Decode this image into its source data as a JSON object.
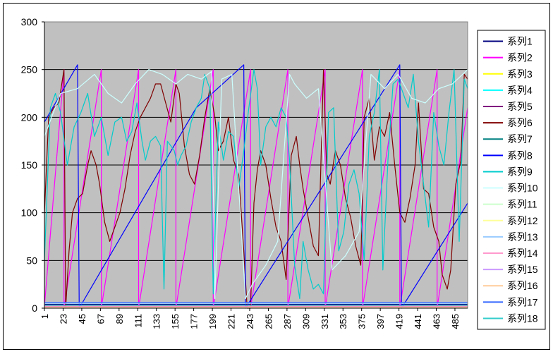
{
  "chart_data": {
    "type": "line",
    "title": "",
    "xlabel": "",
    "ylabel": "",
    "ylim": [
      0,
      300
    ],
    "yticks": [
      0,
      50,
      100,
      150,
      200,
      250,
      300
    ],
    "x_count": 500,
    "x_tick_labels": [
      "1",
      "23",
      "45",
      "67",
      "89",
      "111",
      "133",
      "155",
      "177",
      "199",
      "221",
      "243",
      "265",
      "287",
      "309",
      "331",
      "353",
      "375",
      "397",
      "419",
      "441",
      "463",
      "485"
    ],
    "grid": "horizontal",
    "legend_position": "right",
    "plot_background": "#c0c0c0",
    "series": [
      {
        "name": "系列1",
        "color": "#000080",
        "values": [
          [
            1,
            4
          ],
          [
            500,
            4
          ]
        ]
      },
      {
        "name": "系列2",
        "color": "#ff00ff",
        "values": [
          [
            1,
            2
          ],
          [
            24,
            250
          ],
          [
            24,
            0
          ],
          [
            68,
            250
          ],
          [
            68,
            0
          ],
          [
            112,
            250
          ],
          [
            112,
            0
          ],
          [
            156,
            250
          ],
          [
            156,
            0
          ],
          [
            200,
            250
          ],
          [
            200,
            0
          ],
          [
            244,
            250
          ],
          [
            244,
            0
          ],
          [
            288,
            250
          ],
          [
            288,
            0
          ],
          [
            332,
            250
          ],
          [
            332,
            0
          ],
          [
            376,
            250
          ],
          [
            376,
            0
          ],
          [
            420,
            250
          ],
          [
            420,
            0
          ],
          [
            464,
            250
          ],
          [
            464,
            0
          ],
          [
            500,
            210
          ]
        ]
      },
      {
        "name": "系列3",
        "color": "#ffff00",
        "values": [
          [
            1,
            1
          ],
          [
            500,
            1
          ]
        ]
      },
      {
        "name": "系列4",
        "color": "#00ffff",
        "values": [
          [
            1,
            3
          ],
          [
            500,
            3
          ]
        ]
      },
      {
        "name": "系列5",
        "color": "#800080",
        "values": [
          [
            1,
            2
          ],
          [
            500,
            2
          ]
        ]
      },
      {
        "name": "系列6",
        "color": "#800000",
        "values": [
          [
            1,
            100
          ],
          [
            6,
            200
          ],
          [
            12,
            210
          ],
          [
            18,
            215
          ],
          [
            24,
            250
          ],
          [
            26,
            0
          ],
          [
            30,
            60
          ],
          [
            34,
            100
          ],
          [
            40,
            115
          ],
          [
            46,
            120
          ],
          [
            52,
            150
          ],
          [
            56,
            165
          ],
          [
            62,
            150
          ],
          [
            66,
            130
          ],
          [
            72,
            90
          ],
          [
            78,
            70
          ],
          [
            84,
            85
          ],
          [
            90,
            100
          ],
          [
            96,
            125
          ],
          [
            102,
            160
          ],
          [
            108,
            185
          ],
          [
            114,
            200
          ],
          [
            120,
            210
          ],
          [
            126,
            220
          ],
          [
            132,
            235
          ],
          [
            138,
            235
          ],
          [
            144,
            215
          ],
          [
            150,
            195
          ],
          [
            156,
            235
          ],
          [
            160,
            225
          ],
          [
            166,
            170
          ],
          [
            172,
            140
          ],
          [
            178,
            130
          ],
          [
            184,
            160
          ],
          [
            190,
            200
          ],
          [
            196,
            230
          ],
          [
            202,
            200
          ],
          [
            206,
            165
          ],
          [
            212,
            175
          ],
          [
            218,
            200
          ],
          [
            224,
            155
          ],
          [
            230,
            140
          ],
          [
            236,
            60
          ],
          [
            240,
            0
          ],
          [
            244,
            0
          ],
          [
            248,
            110
          ],
          [
            252,
            145
          ],
          [
            256,
            165
          ],
          [
            262,
            150
          ],
          [
            268,
            115
          ],
          [
            274,
            85
          ],
          [
            280,
            70
          ],
          [
            286,
            30
          ],
          [
            292,
            160
          ],
          [
            298,
            180
          ],
          [
            302,
            150
          ],
          [
            306,
            125
          ],
          [
            312,
            95
          ],
          [
            318,
            65
          ],
          [
            324,
            55
          ],
          [
            330,
            250
          ],
          [
            334,
            140
          ],
          [
            338,
            130
          ],
          [
            344,
            165
          ],
          [
            350,
            150
          ],
          [
            356,
            115
          ],
          [
            362,
            95
          ],
          [
            368,
            65
          ],
          [
            374,
            45
          ],
          [
            378,
            200
          ],
          [
            384,
            220
          ],
          [
            390,
            155
          ],
          [
            396,
            190
          ],
          [
            402,
            180
          ],
          [
            408,
            205
          ],
          [
            414,
            150
          ],
          [
            420,
            100
          ],
          [
            426,
            90
          ],
          [
            432,
            115
          ],
          [
            438,
            150
          ],
          [
            442,
            215
          ],
          [
            448,
            125
          ],
          [
            454,
            120
          ],
          [
            460,
            85
          ],
          [
            466,
            70
          ],
          [
            470,
            35
          ],
          [
            476,
            20
          ],
          [
            480,
            40
          ],
          [
            486,
            130
          ],
          [
            492,
            155
          ],
          [
            496,
            245
          ],
          [
            500,
            240
          ]
        ]
      },
      {
        "name": "系列7",
        "color": "#008080",
        "values": [
          [
            1,
            3
          ],
          [
            500,
            3
          ]
        ]
      },
      {
        "name": "系列8",
        "color": "#0000ff",
        "values": [
          [
            1,
            195
          ],
          [
            40,
            255
          ],
          [
            42,
            0
          ],
          [
            180,
            210
          ],
          [
            236,
            255
          ],
          [
            238,
            0
          ],
          [
            420,
            255
          ],
          [
            422,
            0
          ],
          [
            500,
            110
          ]
        ]
      },
      {
        "name": "系列9",
        "color": "#00cccc",
        "values": [
          [
            1,
            50
          ],
          [
            8,
            210
          ],
          [
            14,
            225
          ],
          [
            20,
            205
          ],
          [
            28,
            150
          ],
          [
            36,
            190
          ],
          [
            44,
            205
          ],
          [
            52,
            225
          ],
          [
            60,
            180
          ],
          [
            68,
            200
          ],
          [
            76,
            160
          ],
          [
            84,
            195
          ],
          [
            92,
            200
          ],
          [
            98,
            175
          ],
          [
            104,
            185
          ],
          [
            110,
            215
          ],
          [
            116,
            175
          ],
          [
            120,
            155
          ],
          [
            126,
            175
          ],
          [
            132,
            180
          ],
          [
            138,
            170
          ],
          [
            142,
            20
          ],
          [
            146,
            175
          ],
          [
            150,
            170
          ],
          [
            154,
            165
          ],
          [
            158,
            150
          ],
          [
            162,
            160
          ],
          [
            168,
            170
          ],
          [
            174,
            195
          ],
          [
            180,
            210
          ],
          [
            186,
            220
          ],
          [
            190,
            245
          ],
          [
            196,
            230
          ],
          [
            200,
            15
          ],
          [
            206,
            195
          ],
          [
            212,
            155
          ],
          [
            218,
            185
          ],
          [
            224,
            180
          ],
          [
            230,
            125
          ],
          [
            236,
            165
          ],
          [
            242,
            210
          ],
          [
            248,
            250
          ],
          [
            252,
            230
          ],
          [
            256,
            150
          ],
          [
            262,
            190
          ],
          [
            268,
            200
          ],
          [
            274,
            190
          ],
          [
            280,
            210
          ],
          [
            286,
            200
          ],
          [
            290,
            155
          ],
          [
            296,
            45
          ],
          [
            302,
            10
          ],
          [
            306,
            70
          ],
          [
            312,
            40
          ],
          [
            318,
            20
          ],
          [
            324,
            25
          ],
          [
            330,
            15
          ],
          [
            336,
            205
          ],
          [
            342,
            210
          ],
          [
            348,
            60
          ],
          [
            354,
            80
          ],
          [
            360,
            130
          ],
          [
            366,
            145
          ],
          [
            372,
            120
          ],
          [
            378,
            50
          ],
          [
            384,
            180
          ],
          [
            390,
            205
          ],
          [
            396,
            250
          ],
          [
            400,
            40
          ],
          [
            406,
            155
          ],
          [
            412,
            235
          ],
          [
            418,
            240
          ],
          [
            424,
            225
          ],
          [
            430,
            210
          ],
          [
            436,
            245
          ],
          [
            442,
            175
          ],
          [
            448,
            130
          ],
          [
            454,
            85
          ],
          [
            460,
            205
          ],
          [
            466,
            170
          ],
          [
            472,
            150
          ],
          [
            478,
            205
          ],
          [
            484,
            250
          ],
          [
            490,
            70
          ],
          [
            496,
            240
          ],
          [
            500,
            230
          ]
        ]
      },
      {
        "name": "系列10",
        "color": "#ccffff",
        "values": [
          [
            1,
            180
          ],
          [
            20,
            225
          ],
          [
            40,
            230
          ],
          [
            60,
            245
          ],
          [
            76,
            225
          ],
          [
            92,
            215
          ],
          [
            108,
            235
          ],
          [
            124,
            250
          ],
          [
            140,
            245
          ],
          [
            156,
            235
          ],
          [
            170,
            245
          ],
          [
            186,
            240
          ],
          [
            198,
            248
          ],
          [
            202,
            10
          ],
          [
            210,
            240
          ],
          [
            222,
            245
          ],
          [
            238,
            10
          ],
          [
            246,
            25
          ],
          [
            262,
            45
          ],
          [
            276,
            70
          ],
          [
            290,
            245
          ],
          [
            296,
            235
          ],
          [
            310,
            220
          ],
          [
            324,
            230
          ],
          [
            340,
            40
          ],
          [
            356,
            55
          ],
          [
            372,
            80
          ],
          [
            386,
            245
          ],
          [
            402,
            230
          ],
          [
            418,
            245
          ],
          [
            434,
            220
          ],
          [
            450,
            215
          ],
          [
            466,
            230
          ],
          [
            482,
            235
          ],
          [
            500,
            250
          ]
        ]
      },
      {
        "name": "系列11",
        "color": "#ccffcc",
        "values": [
          [
            1,
            1
          ],
          [
            500,
            1
          ]
        ]
      },
      {
        "name": "系列12",
        "color": "#ffff99",
        "values": [
          [
            1,
            1
          ],
          [
            500,
            1
          ]
        ]
      },
      {
        "name": "系列13",
        "color": "#99ccff",
        "values": [
          [
            1,
            5
          ],
          [
            500,
            5
          ]
        ]
      },
      {
        "name": "系列14",
        "color": "#ff99cc",
        "values": [
          [
            1,
            2
          ],
          [
            500,
            2
          ]
        ]
      },
      {
        "name": "系列15",
        "color": "#cc99ff",
        "values": [
          [
            1,
            1
          ],
          [
            500,
            1
          ]
        ]
      },
      {
        "name": "系列16",
        "color": "#ffcc99",
        "values": [
          [
            1,
            1
          ],
          [
            500,
            1
          ]
        ]
      },
      {
        "name": "系列17",
        "color": "#3366ff",
        "values": [
          [
            1,
            6
          ],
          [
            500,
            6
          ]
        ]
      },
      {
        "name": "系列18",
        "color": "#33cccc",
        "values": [
          [
            1,
            3
          ],
          [
            500,
            3
          ]
        ]
      }
    ]
  }
}
